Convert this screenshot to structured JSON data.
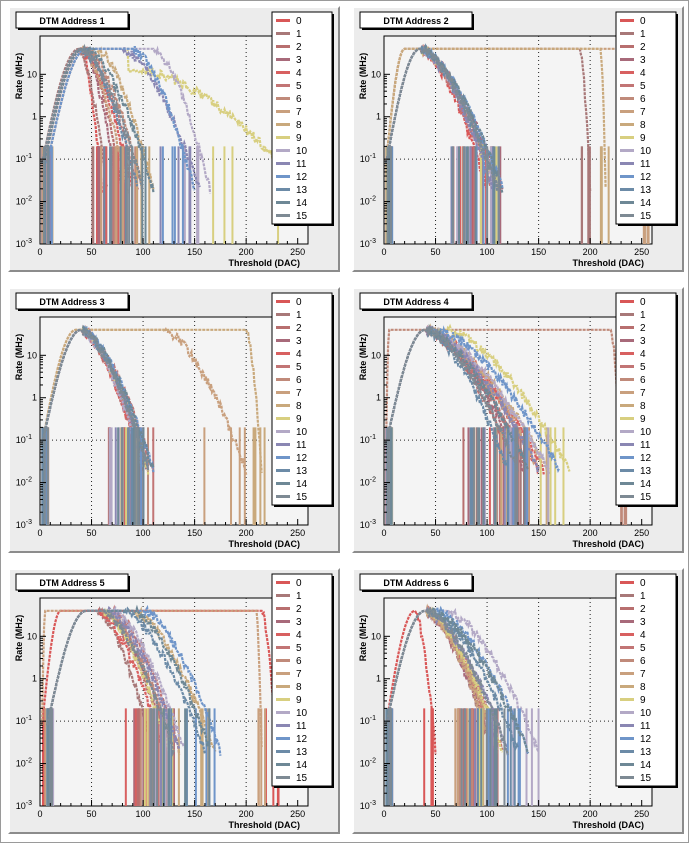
{
  "chart_data": [
    {
      "type": "line",
      "title": "DTM Address 1",
      "xlabel": "Threshold (DAC)",
      "ylabel": "Rate (MHz)",
      "xlim": [
        0,
        260
      ],
      "ylim": [
        0.001,
        80
      ],
      "yscale": "log",
      "x_ticks": [
        "0",
        "50",
        "100",
        "150",
        "200",
        "250"
      ],
      "y_ticks": [
        "10⁻³",
        "10⁻²",
        "10⁻¹",
        "1",
        "10"
      ],
      "grid": "vertical dotted at 50, 100, 150, 200",
      "legend_position": "right",
      "series": [
        {
          "name": "0",
          "peak_x": 40,
          "plateau_end_x": 40,
          "falloff_end_x": 60,
          "peak_value": 40
        },
        {
          "name": "1",
          "peak_x": 38,
          "plateau_end_x": 38,
          "falloff_end_x": 65,
          "peak_value": 40
        },
        {
          "name": "2",
          "peak_x": 40,
          "plateau_end_x": 42,
          "falloff_end_x": 80,
          "peak_value": 40
        },
        {
          "name": "3",
          "peak_x": 42,
          "plateau_end_x": 42,
          "falloff_end_x": 75,
          "peak_value": 40
        },
        {
          "name": "4",
          "peak_x": 40,
          "plateau_end_x": 40,
          "falloff_end_x": 90,
          "peak_value": 40
        },
        {
          "name": "5",
          "peak_x": 42,
          "plateau_end_x": 42,
          "falloff_end_x": 95,
          "peak_value": 40
        },
        {
          "name": "6",
          "peak_x": 45,
          "plateau_end_x": 45,
          "falloff_end_x": 100,
          "peak_value": 40
        },
        {
          "name": "7",
          "peak_x": 40,
          "plateau_end_x": 40,
          "falloff_end_x": 85,
          "peak_value": 40
        },
        {
          "name": "8",
          "peak_x": 45,
          "plateau_end_x": 55,
          "falloff_end_x": 110,
          "peak_value": 40
        },
        {
          "name": "9",
          "peak_x": 45,
          "plateau_end_x": 100,
          "falloff_end_x": 255,
          "peak_value": 40,
          "tail_value": 12
        },
        {
          "name": "10",
          "peak_x": 45,
          "plateau_end_x": 110,
          "falloff_end_x": 165,
          "peak_value": 40
        },
        {
          "name": "11",
          "peak_x": 45,
          "plateau_end_x": 80,
          "falloff_end_x": 155,
          "peak_value": 40
        },
        {
          "name": "12",
          "peak_x": 45,
          "plateau_end_x": 90,
          "falloff_end_x": 150,
          "peak_value": 40
        },
        {
          "name": "13",
          "peak_x": 40,
          "plateau_end_x": 40,
          "falloff_end_x": 95,
          "peak_value": 40
        },
        {
          "name": "14",
          "peak_x": 42,
          "plateau_end_x": 45,
          "falloff_end_x": 110,
          "peak_value": 40
        },
        {
          "name": "15",
          "peak_x": 40,
          "plateau_end_x": 40,
          "falloff_end_x": 100,
          "peak_value": 40
        }
      ]
    },
    {
      "type": "line",
      "title": "DTM Address 2",
      "xlabel": "Threshold (DAC)",
      "ylabel": "Rate (MHz)",
      "xlim": [
        0,
        260
      ],
      "ylim": [
        0.001,
        80
      ],
      "yscale": "log",
      "x_ticks": [
        "0",
        "50",
        "100",
        "150",
        "200",
        "250"
      ],
      "y_ticks": [
        "10⁻³",
        "10⁻²",
        "10⁻¹",
        "1",
        "10"
      ],
      "grid": "vertical dotted at 50, 100, 150, 200",
      "legend_position": "right",
      "series": [
        {
          "name": "0",
          "peak_x": 35,
          "plateau_end_x": 35,
          "falloff_end_x": 100,
          "peak_value": 40
        },
        {
          "name": "1",
          "peak_x": 20,
          "plateau_end_x": 190,
          "falloff_end_x": 200,
          "peak_value": 40
        },
        {
          "name": "2",
          "peak_x": 35,
          "plateau_end_x": 35,
          "falloff_end_x": 110,
          "peak_value": 40
        },
        {
          "name": "3",
          "peak_x": 35,
          "plateau_end_x": 35,
          "falloff_end_x": 115,
          "peak_value": 40
        },
        {
          "name": "4",
          "peak_x": 35,
          "plateau_end_x": 35,
          "falloff_end_x": 110,
          "peak_value": 40
        },
        {
          "name": "5",
          "peak_x": 35,
          "plateau_end_x": 35,
          "falloff_end_x": 105,
          "peak_value": 40
        },
        {
          "name": "6",
          "peak_x": 35,
          "plateau_end_x": 35,
          "falloff_end_x": 110,
          "peak_value": 40
        },
        {
          "name": "7",
          "peak_x": 20,
          "plateau_end_x": 240,
          "falloff_end_x": 260,
          "peak_value": 40
        },
        {
          "name": "8",
          "peak_x": 20,
          "plateau_end_x": 210,
          "falloff_end_x": 215,
          "peak_value": 40
        },
        {
          "name": "9",
          "peak_x": 35,
          "plateau_end_x": 35,
          "falloff_end_x": 110,
          "peak_value": 40
        },
        {
          "name": "10",
          "peak_x": 35,
          "plateau_end_x": 35,
          "falloff_end_x": 110,
          "peak_value": 40
        },
        {
          "name": "11",
          "peak_x": 35,
          "plateau_end_x": 35,
          "falloff_end_x": 105,
          "peak_value": 40
        },
        {
          "name": "12",
          "peak_x": 35,
          "plateau_end_x": 35,
          "falloff_end_x": 115,
          "peak_value": 40
        },
        {
          "name": "13",
          "peak_x": 35,
          "plateau_end_x": 35,
          "falloff_end_x": 110,
          "peak_value": 40
        },
        {
          "name": "14",
          "peak_x": 35,
          "plateau_end_x": 35,
          "falloff_end_x": 115,
          "peak_value": 40
        },
        {
          "name": "15",
          "peak_x": 35,
          "plateau_end_x": 35,
          "falloff_end_x": 110,
          "peak_value": 40
        }
      ]
    },
    {
      "type": "line",
      "title": "DTM Address 3",
      "xlabel": "Threshold (DAC)",
      "ylabel": "Rate (MHz)",
      "xlim": [
        0,
        260
      ],
      "ylim": [
        0.001,
        80
      ],
      "yscale": "log",
      "x_ticks": [
        "0",
        "50",
        "100",
        "150",
        "200",
        "250"
      ],
      "y_ticks": [
        "10⁻³",
        "10⁻²",
        "10⁻¹",
        "1",
        "10"
      ],
      "grid": "vertical dotted at 50, 100, 150, 200",
      "legend_position": "right",
      "series": [
        {
          "name": "0",
          "peak_x": 40,
          "plateau_end_x": 40,
          "falloff_end_x": 100,
          "peak_value": 40
        },
        {
          "name": "1",
          "peak_x": 40,
          "plateau_end_x": 40,
          "falloff_end_x": 105,
          "peak_value": 40
        },
        {
          "name": "2",
          "peak_x": 40,
          "plateau_end_x": 40,
          "falloff_end_x": 100,
          "peak_value": 40
        },
        {
          "name": "3",
          "peak_x": 40,
          "plateau_end_x": 40,
          "falloff_end_x": 105,
          "peak_value": 40
        },
        {
          "name": "4",
          "peak_x": 40,
          "plateau_end_x": 40,
          "falloff_end_x": 100,
          "peak_value": 40
        },
        {
          "name": "5",
          "peak_x": 40,
          "plateau_end_x": 40,
          "falloff_end_x": 110,
          "peak_value": 40
        },
        {
          "name": "6",
          "peak_x": 40,
          "plateau_end_x": 40,
          "falloff_end_x": 105,
          "peak_value": 40
        },
        {
          "name": "7",
          "peak_x": 35,
          "plateau_end_x": 120,
          "falloff_end_x": 200,
          "peak_value": 40
        },
        {
          "name": "8",
          "peak_x": 35,
          "plateau_end_x": 200,
          "falloff_end_x": 215,
          "peak_value": 40
        },
        {
          "name": "9",
          "peak_x": 40,
          "plateau_end_x": 40,
          "falloff_end_x": 105,
          "peak_value": 40
        },
        {
          "name": "10",
          "peak_x": 40,
          "plateau_end_x": 40,
          "falloff_end_x": 100,
          "peak_value": 40
        },
        {
          "name": "11",
          "peak_x": 40,
          "plateau_end_x": 40,
          "falloff_end_x": 105,
          "peak_value": 40
        },
        {
          "name": "12",
          "peak_x": 40,
          "plateau_end_x": 40,
          "falloff_end_x": 110,
          "peak_value": 40
        },
        {
          "name": "13",
          "peak_x": 40,
          "plateau_end_x": 40,
          "falloff_end_x": 105,
          "peak_value": 40
        },
        {
          "name": "14",
          "peak_x": 40,
          "plateau_end_x": 40,
          "falloff_end_x": 110,
          "peak_value": 40
        },
        {
          "name": "15",
          "peak_x": 40,
          "plateau_end_x": 40,
          "falloff_end_x": 105,
          "peak_value": 40
        }
      ]
    },
    {
      "type": "line",
      "title": "DTM Address 4",
      "xlabel": "Threshold (DAC)",
      "ylabel": "Rate (MHz)",
      "xlim": [
        0,
        260
      ],
      "ylim": [
        0.001,
        80
      ],
      "yscale": "log",
      "x_ticks": [
        "0",
        "50",
        "100",
        "150",
        "200",
        "250"
      ],
      "y_ticks": [
        "10⁻³",
        "10⁻²",
        "10⁻¹",
        "1",
        "10"
      ],
      "grid": "vertical dotted at 50, 100, 150, 200",
      "legend_position": "right",
      "series": [
        {
          "name": "0",
          "peak_x": 40,
          "plateau_end_x": 40,
          "falloff_end_x": 150,
          "peak_value": 40
        },
        {
          "name": "1",
          "peak_x": 40,
          "plateau_end_x": 40,
          "falloff_end_x": 140,
          "peak_value": 40
        },
        {
          "name": "2",
          "peak_x": 40,
          "plateau_end_x": 40,
          "falloff_end_x": 130,
          "peak_value": 40
        },
        {
          "name": "3",
          "peak_x": 40,
          "plateau_end_x": 40,
          "falloff_end_x": 135,
          "peak_value": 40
        },
        {
          "name": "4",
          "peak_x": 40,
          "plateau_end_x": 40,
          "falloff_end_x": 155,
          "peak_value": 40
        },
        {
          "name": "5",
          "peak_x": 40,
          "plateau_end_x": 40,
          "falloff_end_x": 140,
          "peak_value": 40
        },
        {
          "name": "6",
          "peak_x": 5,
          "plateau_end_x": 220,
          "falloff_end_x": 230,
          "peak_value": 40
        },
        {
          "name": "7",
          "peak_x": 40,
          "plateau_end_x": 40,
          "falloff_end_x": 150,
          "peak_value": 40
        },
        {
          "name": "8",
          "peak_x": 40,
          "plateau_end_x": 40,
          "falloff_end_x": 160,
          "peak_value": 40
        },
        {
          "name": "9",
          "peak_x": 40,
          "plateau_end_x": 60,
          "falloff_end_x": 180,
          "peak_value": 40
        },
        {
          "name": "10",
          "peak_x": 40,
          "plateau_end_x": 40,
          "falloff_end_x": 160,
          "peak_value": 40
        },
        {
          "name": "11",
          "peak_x": 40,
          "plateau_end_x": 40,
          "falloff_end_x": 150,
          "peak_value": 40
        },
        {
          "name": "12",
          "peak_x": 40,
          "plateau_end_x": 50,
          "falloff_end_x": 170,
          "peak_value": 40
        },
        {
          "name": "13",
          "peak_x": 40,
          "plateau_end_x": 40,
          "falloff_end_x": 120,
          "peak_value": 40
        },
        {
          "name": "14",
          "peak_x": 40,
          "plateau_end_x": 40,
          "falloff_end_x": 140,
          "peak_value": 40
        },
        {
          "name": "15",
          "peak_x": 40,
          "plateau_end_x": 40,
          "falloff_end_x": 130,
          "peak_value": 40
        }
      ]
    },
    {
      "type": "line",
      "title": "DTM Address 5",
      "xlabel": "Threshold (DAC)",
      "ylabel": "Rate (MHz)",
      "xlim": [
        0,
        260
      ],
      "ylim": [
        0.001,
        80
      ],
      "yscale": "log",
      "x_ticks": [
        "0",
        "50",
        "100",
        "150",
        "200",
        "250"
      ],
      "y_ticks": [
        "10⁻³",
        "10⁻²",
        "10⁻¹",
        "1",
        "10"
      ],
      "grid": "vertical dotted at 50, 100, 150, 200",
      "legend_position": "right",
      "series": [
        {
          "name": "0",
          "peak_x": 20,
          "plateau_end_x": 215,
          "falloff_end_x": 230,
          "peak_value": 40
        },
        {
          "name": "1",
          "peak_x": 45,
          "plateau_end_x": 55,
          "falloff_end_x": 110,
          "peak_value": 40
        },
        {
          "name": "2",
          "peak_x": 45,
          "plateau_end_x": 60,
          "falloff_end_x": 125,
          "peak_value": 40
        },
        {
          "name": "3",
          "peak_x": 45,
          "plateau_end_x": 60,
          "falloff_end_x": 130,
          "peak_value": 40
        },
        {
          "name": "4",
          "peak_x": 45,
          "plateau_end_x": 55,
          "falloff_end_x": 120,
          "peak_value": 40
        },
        {
          "name": "5",
          "peak_x": 45,
          "plateau_end_x": 70,
          "falloff_end_x": 135,
          "peak_value": 40
        },
        {
          "name": "6",
          "peak_x": 45,
          "plateau_end_x": 65,
          "falloff_end_x": 130,
          "peak_value": 40
        },
        {
          "name": "7",
          "peak_x": 5,
          "plateau_end_x": 210,
          "falloff_end_x": 215,
          "peak_value": 40
        },
        {
          "name": "8",
          "peak_x": 45,
          "plateau_end_x": 90,
          "falloff_end_x": 170,
          "peak_value": 40
        },
        {
          "name": "9",
          "peak_x": 45,
          "plateau_end_x": 60,
          "falloff_end_x": 125,
          "peak_value": 40
        },
        {
          "name": "10",
          "peak_x": 45,
          "plateau_end_x": 70,
          "falloff_end_x": 140,
          "peak_value": 40
        },
        {
          "name": "11",
          "peak_x": 45,
          "plateau_end_x": 65,
          "falloff_end_x": 135,
          "peak_value": 40
        },
        {
          "name": "12",
          "peak_x": 45,
          "plateau_end_x": 100,
          "falloff_end_x": 175,
          "peak_value": 40
        },
        {
          "name": "13",
          "peak_x": 45,
          "plateau_end_x": 80,
          "falloff_end_x": 160,
          "peak_value": 40
        },
        {
          "name": "14",
          "peak_x": 45,
          "plateau_end_x": 90,
          "falloff_end_x": 165,
          "peak_value": 40
        },
        {
          "name": "15",
          "peak_x": 45,
          "plateau_end_x": 60,
          "falloff_end_x": 130,
          "peak_value": 40
        }
      ]
    },
    {
      "type": "line",
      "title": "DTM Address 6",
      "xlabel": "Threshold (DAC)",
      "ylabel": "Rate (MHz)",
      "xlim": [
        0,
        260
      ],
      "ylim": [
        0.001,
        80
      ],
      "yscale": "log",
      "x_ticks": [
        "0",
        "50",
        "100",
        "150",
        "200",
        "250"
      ],
      "y_ticks": [
        "10⁻³",
        "10⁻²",
        "10⁻¹",
        "1",
        "10"
      ],
      "grid": "vertical dotted at 50, 100, 150, 200",
      "legend_position": "right",
      "series": [
        {
          "name": "0",
          "peak_x": 30,
          "plateau_end_x": 30,
          "falloff_end_x": 50,
          "peak_value": 40
        },
        {
          "name": "1",
          "peak_x": 40,
          "plateau_end_x": 40,
          "falloff_end_x": 105,
          "peak_value": 40
        },
        {
          "name": "2",
          "peak_x": 40,
          "plateau_end_x": 40,
          "falloff_end_x": 110,
          "peak_value": 40
        },
        {
          "name": "3",
          "peak_x": 40,
          "plateau_end_x": 40,
          "falloff_end_x": 105,
          "peak_value": 40
        },
        {
          "name": "4",
          "peak_x": 40,
          "plateau_end_x": 40,
          "falloff_end_x": 110,
          "peak_value": 40
        },
        {
          "name": "5",
          "peak_x": 40,
          "plateau_end_x": 40,
          "falloff_end_x": 115,
          "peak_value": 40
        },
        {
          "name": "6",
          "peak_x": 40,
          "plateau_end_x": 40,
          "falloff_end_x": 110,
          "peak_value": 40
        },
        {
          "name": "7",
          "peak_x": 40,
          "plateau_end_x": 40,
          "falloff_end_x": 105,
          "peak_value": 40
        },
        {
          "name": "8",
          "peak_x": 40,
          "plateau_end_x": 40,
          "falloff_end_x": 110,
          "peak_value": 40
        },
        {
          "name": "9",
          "peak_x": 40,
          "plateau_end_x": 40,
          "falloff_end_x": 115,
          "peak_value": 40
        },
        {
          "name": "10",
          "peak_x": 40,
          "plateau_end_x": 60,
          "falloff_end_x": 150,
          "peak_value": 40
        },
        {
          "name": "11",
          "peak_x": 40,
          "plateau_end_x": 40,
          "falloff_end_x": 120,
          "peak_value": 40
        },
        {
          "name": "12",
          "peak_x": 40,
          "plateau_end_x": 50,
          "falloff_end_x": 140,
          "peak_value": 40
        },
        {
          "name": "13",
          "peak_x": 40,
          "plateau_end_x": 45,
          "falloff_end_x": 130,
          "peak_value": 40
        },
        {
          "name": "14",
          "peak_x": 40,
          "plateau_end_x": 45,
          "falloff_end_x": 140,
          "peak_value": 40
        },
        {
          "name": "15",
          "peak_x": 40,
          "plateau_end_x": 40,
          "falloff_end_x": 120,
          "peak_value": 40
        }
      ]
    }
  ],
  "palette": {
    "series_colors": [
      "#d95757",
      "#a87878",
      "#b86f6f",
      "#a86a7a",
      "#d86060",
      "#c27575",
      "#c08a7a",
      "#c9a07e",
      "#c9a97c",
      "#d8cf80",
      "#b3a9c6",
      "#8a87b3",
      "#6f95c9",
      "#6c8ba7",
      "#6e8896",
      "#7e8a94"
    ],
    "background": "#ececec",
    "frame_fill": "#f4f4f4"
  }
}
